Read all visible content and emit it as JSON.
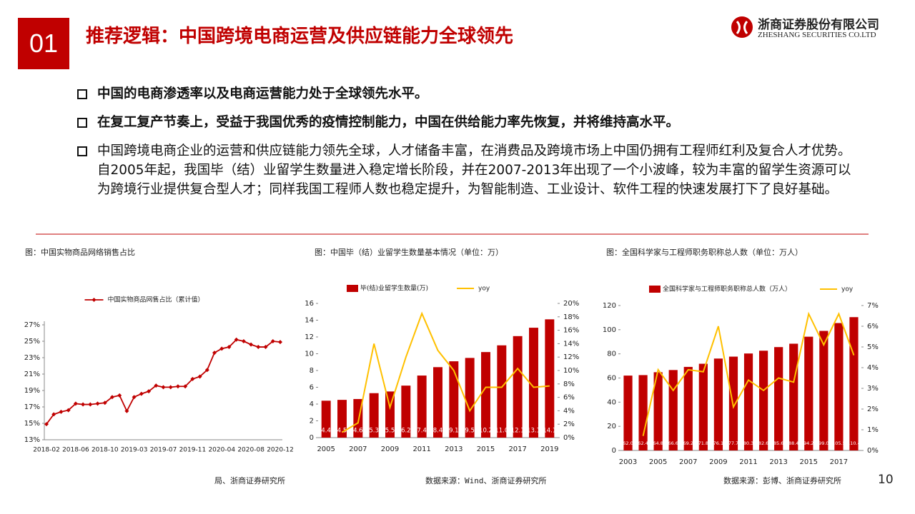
{
  "header": {
    "number": "01",
    "title": "推荐逻辑：中国跨境电商运营及供应链能力全球领先",
    "company_cn": "浙商证券股份有限公司",
    "company_en": "ZHESHANG SECURITIES CO.LTD"
  },
  "bullets": [
    "中国的电商渗透率以及电商运营能力处于全球领先水平。",
    "在复工复产节奏上，受益于我国优秀的疫情控制能力，中国在供给能力率先恢复，并将维持高水平。",
    "中国跨境电商企业的运营和供应链能力领先全球，人才储备丰富，在消费品及跨境市场上中国仍拥有工程师红利及复合人才优势。自2005年起，我国毕（结）业留学生数量进入稳定增长阶段，并在2007-2013年出现了一个小波峰，较为丰富的留学生资源可以为跨境行业提供复合型人才；同样我国工程师人数也稳定提升，为智能制造、工业设计、软件工程的快速发展打下了良好基础。"
  ],
  "page_number": "10",
  "chart_data": [
    {
      "type": "line",
      "title": "图：中国实物商品网络销售占比",
      "source": "局、浙商证券研究所",
      "categories": [
        "2018-02",
        null,
        null,
        null,
        "2018-06",
        null,
        null,
        null,
        "2018-10",
        null,
        null,
        null,
        "2019-03",
        null,
        null,
        null,
        "2019-07",
        null,
        null,
        null,
        "2019-11",
        null,
        null,
        null,
        "2020-04",
        null,
        null,
        null,
        "2020-08",
        null,
        null,
        null,
        "2020-12"
      ],
      "series": [
        {
          "name": "中国实物商品网售占比（累计值）",
          "color": "#c00000",
          "values": [
            14.9,
            16.1,
            16.4,
            16.6,
            17.4,
            17.3,
            17.3,
            17.4,
            17.5,
            18.2,
            18.4,
            16.5,
            18.2,
            18.6,
            18.9,
            19.6,
            19.4,
            19.4,
            19.5,
            19.5,
            20.4,
            20.7,
            21.5,
            23.6,
            24.1,
            24.3,
            25.2,
            25.0,
            24.6,
            24.3,
            24.3,
            25.0,
            24.9
          ]
        }
      ],
      "ylim": [
        13,
        27
      ],
      "yticks": [
        {
          "value": 13,
          "label": "13%"
        },
        {
          "value": 15,
          "label": "15%"
        },
        {
          "value": 17,
          "label": "17%"
        },
        {
          "value": 19,
          "label": "19%"
        },
        {
          "value": 21,
          "label": "21%"
        },
        {
          "value": 23,
          "label": "23%"
        },
        {
          "value": 25,
          "label": "25%"
        },
        {
          "value": 27,
          "label": "27%"
        }
      ]
    },
    {
      "type": "bar",
      "title": "图：中国毕（结）业留学生数量基本情况（单位：万）",
      "source": "数据来源：Wind、浙商证券研究所",
      "categories": [
        "2005",
        null,
        "2007",
        null,
        "2009",
        null,
        "2011",
        null,
        "2013",
        null,
        "2015",
        null,
        "2017",
        null,
        "2019"
      ],
      "series": [
        {
          "name": "毕(结)业留学生数量(万)",
          "color": "#c00000",
          "values": [
            4.4,
            4.5,
            4.6,
            5.3,
            5.5,
            6.2,
            7.4,
            8.4,
            9.1,
            9.5,
            10.2,
            11.0,
            12.1,
            13.1,
            14.1
          ],
          "value_labels": [
            "4.4",
            "4.5",
            "4.6",
            "5.3",
            "5.5",
            "6.2",
            "7.4",
            "8.4",
            "9.1",
            "9.5",
            "10.2",
            "11.0",
            "12.1",
            "13.1",
            "14.1"
          ]
        },
        {
          "name": "yoy",
          "color": "#ffc000",
          "axis": "y2",
          "values": [
            null,
            0.8,
            2.2,
            14,
            4.5,
            12,
            18.5,
            13,
            10,
            4,
            7.5,
            7.5,
            10.3,
            7.5,
            7.7
          ]
        }
      ],
      "ylim": [
        0,
        16
      ],
      "yticks": [
        0,
        2,
        4,
        6,
        8,
        10,
        12,
        14,
        16
      ],
      "y2lim": [
        0,
        20
      ],
      "y2ticks": [
        {
          "value": 0,
          "label": "0%"
        },
        {
          "value": 2,
          "label": "2%"
        },
        {
          "value": 4,
          "label": "4%"
        },
        {
          "value": 6,
          "label": "6%"
        },
        {
          "value": 8,
          "label": "8%"
        },
        {
          "value": 10,
          "label": "10%"
        },
        {
          "value": 12,
          "label": "12%"
        },
        {
          "value": 14,
          "label": "14%"
        },
        {
          "value": 16,
          "label": "16%"
        },
        {
          "value": 18,
          "label": "18%"
        },
        {
          "value": 20,
          "label": "20%"
        }
      ]
    },
    {
      "type": "bar",
      "title": "图：全国科学家与工程师职务职称总人数（单位：万人）",
      "source": "数据来源：彭博、浙商证券研究所",
      "categories": [
        "2003",
        null,
        "2005",
        null,
        "2007",
        null,
        "2009",
        null,
        "2011",
        null,
        "2013",
        null,
        "2015",
        null,
        "2017",
        null
      ],
      "series": [
        {
          "name": "全国科学家与工程师职务职称总人数（万人）",
          "color": "#c00000",
          "values": [
            62.0,
            62.4,
            64.8,
            66.6,
            69.2,
            71.8,
            76.1,
            77.7,
            80.3,
            82.6,
            85.6,
            88.4,
            94.2,
            99.0,
            105.5,
            110.4
          ],
          "value_labels": [
            "62.0",
            "62.4",
            "64.8",
            "66.6",
            "69.2",
            "71.8",
            "76.1",
            "77.7",
            "80.3",
            "82.6",
            "85.6",
            "88.4",
            "94.2",
            "99.0",
            "105.5",
            "110.4"
          ]
        },
        {
          "name": "yoy",
          "color": "#ffc000",
          "axis": "y2",
          "values": [
            null,
            0.7,
            3.9,
            2.9,
            3.9,
            3.8,
            6.0,
            2.1,
            3.4,
            2.9,
            3.5,
            3.3,
            6.6,
            5.1,
            6.6,
            4.6
          ]
        }
      ],
      "ylim": [
        0,
        120
      ],
      "yticks": [
        0,
        20,
        40,
        60,
        80,
        100,
        120
      ],
      "y2lim": [
        0,
        7
      ],
      "y2ticks": [
        {
          "value": 0,
          "label": "0%"
        },
        {
          "value": 1,
          "label": "1%"
        },
        {
          "value": 2,
          "label": "2%"
        },
        {
          "value": 3,
          "label": "3%"
        },
        {
          "value": 4,
          "label": "4%"
        },
        {
          "value": 5,
          "label": "5%"
        },
        {
          "value": 6,
          "label": "6%"
        },
        {
          "value": 7,
          "label": "7%"
        }
      ]
    }
  ]
}
